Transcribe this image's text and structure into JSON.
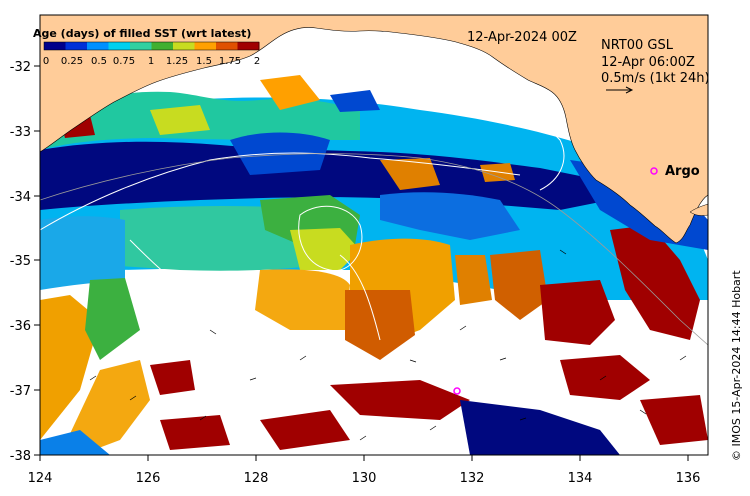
{
  "map": {
    "date_label": "12-Apr-2024 00Z",
    "product_label": "NRT00 GSL",
    "current_time_label": "12-Apr 06:00Z",
    "vector_scale_label": "0.5m/s (1kt 24h)",
    "argo_label": "Argo",
    "credit": "© IMOS 15-Apr-2024 14:44 Hobart",
    "lon_ticks": [
      "124",
      "126",
      "128",
      "130",
      "132",
      "134",
      "136"
    ],
    "lat_ticks": [
      "-32",
      "-33",
      "-34",
      "-35",
      "-36",
      "-37",
      "-38"
    ],
    "lon_range": [
      124,
      136.4
    ],
    "lat_range": [
      -38.1,
      -31.3
    ],
    "colors": {
      "land": "#ffcc99",
      "no_data": "#ffffff",
      "coast_line": "#000000",
      "argo_marker": "#ff00ff"
    }
  },
  "legend": {
    "title": "Age (days) of filled SST (wrt latest)",
    "ticks": [
      "0",
      "0.25",
      "0.5",
      "0.75",
      "1",
      "1.25",
      "1.5",
      "1.75",
      "2"
    ],
    "colors": [
      "#00008b",
      "#0030d8",
      "#0090ff",
      "#00d0f0",
      "#30d0a0",
      "#40b030",
      "#c8dc20",
      "#ffa000",
      "#e05000",
      "#a00000"
    ]
  }
}
